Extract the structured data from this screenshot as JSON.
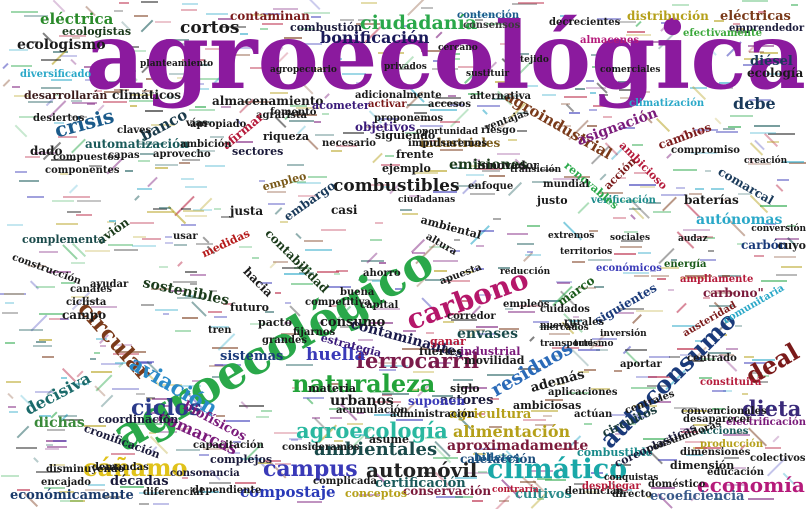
{
  "words": [
    {
      "text": "agroecológica",
      "color": "#8b1a9e"
    },
    {
      "text": "agroecológico",
      "color": "#2aa84a"
    },
    {
      "text": "naturaleza",
      "color": "#23a33a"
    },
    {
      "text": "carbono",
      "color": "#b5176a"
    },
    {
      "text": "autoconsumo",
      "color": "#1a3a7a"
    },
    {
      "text": "agroecología",
      "color": "#2ab8a0"
    },
    {
      "text": "climático",
      "color": "#1aa8a8"
    },
    {
      "text": "campus",
      "color": "#3a3ab8"
    },
    {
      "text": "cáñamo",
      "color": "#e0c21a"
    },
    {
      "text": "automóvil",
      "color": "#222222"
    },
    {
      "text": "ciudadanía",
      "color": "#2aa84a"
    },
    {
      "text": "ferrocarril",
      "color": "#7a1a4a"
    },
    {
      "text": "circular",
      "color": "#7a3a1a"
    },
    {
      "text": "aviación",
      "color": "#2a8ac8"
    },
    {
      "text": "deal",
      "color": "#7a1a1a"
    },
    {
      "text": "dieta",
      "color": "#3a2a7a"
    },
    {
      "text": "ciclos",
      "color": "#2a3a8a"
    },
    {
      "text": "ambientales",
      "color": "#1a4a4a"
    },
    {
      "text": "residuos",
      "color": "#2a6ab8"
    },
    {
      "text": "economía",
      "color": "#b51a7a"
    },
    {
      "text": "combustibles",
      "color": "#1a1a1a"
    },
    {
      "text": "crisis",
      "color": "#1a5a8a"
    },
    {
      "text": "bonificación",
      "color": "#1a1a5a"
    },
    {
      "text": "huella",
      "color": "#3a3ab8"
    },
    {
      "text": "cortos",
      "color": "#1a1a1a"
    },
    {
      "text": "eléctrica",
      "color": "#2a8a2a"
    },
    {
      "text": "compostaje",
      "color": "#2a3ab8"
    },
    {
      "text": "comarcas",
      "color": "#7a1a7a"
    },
    {
      "text": "alimentación",
      "color": "#b5a01a"
    },
    {
      "text": "aproximadamente",
      "color": "#7a1a3a"
    },
    {
      "text": "agroindustrial",
      "color": "#7a3a1a"
    },
    {
      "text": "envases",
      "color": "#1a4a4a"
    },
    {
      "text": "banco",
      "color": "#1a3a4a"
    },
    {
      "text": "decisiva",
      "color": "#1a6a6a"
    },
    {
      "text": "emisiones",
      "color": "#1a3a1a"
    },
    {
      "text": "sostenibles",
      "color": "#1a3a1a"
    },
    {
      "text": "contaminantes",
      "color": "#1a1a4a"
    },
    {
      "text": "ecologismo",
      "color": "#1a1a1a"
    },
    {
      "text": "debe",
      "color": "#1a3a5a"
    },
    {
      "text": "autónomas",
      "color": "#2aa8c8"
    },
    {
      "text": "consumo",
      "color": "#1a1a1a"
    },
    {
      "text": "agricultura",
      "color": "#b5a01a"
    },
    {
      "text": "calefacción",
      "color": "#1a4a7a"
    },
    {
      "text": "cultivos",
      "color": "#2a8a8a"
    },
    {
      "text": "económicamente",
      "color": "#1a3a6a"
    },
    {
      "text": "ecoeficiencia",
      "color": "#3a5a8a"
    },
    {
      "text": "conservación",
      "color": "#7a1a3a"
    },
    {
      "text": "certificación",
      "color": "#1a5a5a"
    },
    {
      "text": "urbanos",
      "color": "#1a1a1a"
    },
    {
      "text": "actores",
      "color": "#1a1a3a"
    },
    {
      "text": "además",
      "color": "#1a1a1a"
    },
    {
      "text": "dichas",
      "color": "#3a8a3a"
    },
    {
      "text": "biofísicos",
      "color": "#7a1a7a"
    },
    {
      "text": "asignación",
      "color": "#7a1a7a"
    },
    {
      "text": "sistemas",
      "color": "#1a3a7a"
    },
    {
      "text": "décadas",
      "color": "#1a1a3a"
    },
    {
      "text": "objetivos",
      "color": "#3a1a7a"
    },
    {
      "text": "industriales",
      "color": "#7a5a1a"
    },
    {
      "text": "contaminan",
      "color": "#7a1a1a"
    },
    {
      "text": "distribución",
      "color": "#b5a01a"
    },
    {
      "text": "eléctricas",
      "color": "#7a3a1a"
    },
    {
      "text": "diésel",
      "color": "#1a3a5a"
    },
    {
      "text": "ecología",
      "color": "#1a1a1a"
    },
    {
      "text": "almacenamiento",
      "color": "#1a1a1a"
    },
    {
      "text": "climáticos",
      "color": "#1a1a1a"
    },
    {
      "text": "automatización",
      "color": "#1a5a5a"
    },
    {
      "text": "sectores",
      "color": "#1a1a3a"
    },
    {
      "text": "contabilidad",
      "color": "#1a3a1a"
    },
    {
      "text": "embargo",
      "color": "#1a3a5a"
    },
    {
      "text": "marco",
      "color": "#1a5a1a"
    },
    {
      "text": "siguientes",
      "color": "#1a3a7a"
    },
    {
      "text": "carbono\"",
      "color": "#7a1a3a"
    },
    {
      "text": "campo",
      "color": "#1a1a1a"
    },
    {
      "text": "justa",
      "color": "#1a1a1a"
    },
    {
      "text": "avión",
      "color": "#1a3a1a"
    },
    {
      "text": "baterías",
      "color": "#1a1a1a"
    },
    {
      "text": "carbón",
      "color": "#1a3a7a"
    },
    {
      "text": "cambios",
      "color": "#7a1a1a"
    },
    {
      "text": "comarcal",
      "color": "#1a3a5a"
    },
    {
      "text": "ambiciosas",
      "color": "#1a1a1a"
    },
    {
      "text": "suponen",
      "color": "#3a3ab8"
    },
    {
      "text": "siglo",
      "color": "#1a1a1a"
    },
    {
      "text": "movilidad",
      "color": "#1a1a1a"
    },
    {
      "text": "materia",
      "color": "#1a1a1a"
    },
    {
      "text": "circuitos",
      "color": "#1a3a3a"
    },
    {
      "text": "billetes",
      "color": "#1a5a8a"
    },
    {
      "text": "combustible",
      "color": "#1a8a8a"
    },
    {
      "text": "asume",
      "color": "#1a1a1a"
    },
    {
      "text": "complementa",
      "color": "#1a4a4a"
    },
    {
      "text": "fuertes",
      "color": "#1a1a1a"
    },
    {
      "text": "industrial",
      "color": "#7a1a7a"
    },
    {
      "text": "ganar",
      "color": "#b51a3a"
    },
    {
      "text": "frente",
      "color": "#1a1a1a"
    },
    {
      "text": "innovador",
      "color": "#1a1a1a"
    },
    {
      "text": "pacto",
      "color": "#1a1a1a"
    },
    {
      "text": "medidas",
      "color": "#b51a1a"
    },
    {
      "text": "dimensión",
      "color": "#1a1a1a"
    },
    {
      "text": "coreoplasticas",
      "color": "#1a1a3a"
    },
    {
      "text": "empleo",
      "color": "#7a5a1a"
    },
    {
      "text": "verificación",
      "color": "#1a8a8a"
    },
    {
      "text": "electrificación",
      "color": "#7a1a7a"
    },
    {
      "text": "acciones",
      "color": "#1a5a5a"
    },
    {
      "text": "producción",
      "color": "#b5a01a"
    },
    {
      "text": "emprendedor",
      "color": "#1a1a3a"
    },
    {
      "text": "efectivamente",
      "color": "#3aa83a"
    },
    {
      "text": "almacenes",
      "color": "#b51a7a"
    },
    {
      "text": "contención",
      "color": "#1a5a8a"
    },
    {
      "text": "consensos",
      "color": "#3a3a3a"
    },
    {
      "text": "decrecientes",
      "color": "#1a1a1a"
    },
    {
      "text": "ecologistas",
      "color": "#1a3a1a"
    },
    {
      "text": "combustión",
      "color": "#1a1a3a"
    },
    {
      "text": "acometer",
      "color": "#3a1a7a"
    },
    {
      "text": "activar",
      "color": "#7a1a1a"
    },
    {
      "text": "aprovecho",
      "color": "#1a1a1a"
    },
    {
      "text": "riesgo",
      "color": "#1a1a1a"
    },
    {
      "text": "cercano",
      "color": "#1a1a1a"
    },
    {
      "text": "aportar",
      "color": "#1a1a1a"
    },
    {
      "text": "conquistas",
      "color": "#1a1a1a"
    },
    {
      "text": "austeridad",
      "color": "#7a1a1a"
    },
    {
      "text": "energía",
      "color": "#1a5a1a"
    },
    {
      "text": "económicos",
      "color": "#3a3ab8"
    },
    {
      "text": "desarrollarán",
      "color": "#3a1a1a"
    },
    {
      "text": "diversificado",
      "color": "#2aa8c8"
    },
    {
      "text": "desiertos",
      "color": "#1a1a1a"
    },
    {
      "text": "compuestos",
      "color": "#1a1a1a"
    },
    {
      "text": "componentes",
      "color": "#1a1a1a"
    },
    {
      "text": "agrarista",
      "color": "#1a1a1a"
    },
    {
      "text": "necesario",
      "color": "#1a1a1a"
    },
    {
      "text": "impulsaremos",
      "color": "#1a1a1a"
    },
    {
      "text": "proponemos",
      "color": "#1a1a1a"
    },
    {
      "text": "oportunidad",
      "color": "#1a1a1a"
    },
    {
      "text": "climatización",
      "color": "#2aa8c8"
    },
    {
      "text": "compromiso",
      "color": "#1a1a1a"
    },
    {
      "text": "creación",
      "color": "#1a1a1a"
    },
    {
      "text": "renovables",
      "color": "#2aa84a"
    },
    {
      "text": "ambicioso",
      "color": "#b51a3a"
    },
    {
      "text": "acción",
      "color": "#7a1a1a"
    },
    {
      "text": "audaz",
      "color": "#1a1a1a"
    },
    {
      "text": "cuyo",
      "color": "#1a1a1a"
    },
    {
      "text": "conversión",
      "color": "#1a1a1a"
    },
    {
      "text": "ampliamente",
      "color": "#b51a3a"
    },
    {
      "text": "comunitaria",
      "color": "#2aa8c8"
    },
    {
      "text": "centrado",
      "color": "#1a1a1a"
    },
    {
      "text": "constituirá",
      "color": "#b51a3a"
    },
    {
      "text": "desaparecer",
      "color": "#1a1a1a"
    },
    {
      "text": "convencionales",
      "color": "#1a1a1a"
    },
    {
      "text": "dependiente",
      "color": "#1a1a1a"
    },
    {
      "text": "diferencial",
      "color": "#1a1a1a"
    },
    {
      "text": "demandas",
      "color": "#1a1a1a"
    },
    {
      "text": "encajado",
      "color": "#1a1a1a"
    },
    {
      "text": "disminuyendo",
      "color": "#1a1a1a"
    },
    {
      "text": "cronificación",
      "color": "#1a1a3a"
    },
    {
      "text": "coordinación",
      "color": "#1a1a3a"
    },
    {
      "text": "consonancia",
      "color": "#1a1a3a"
    },
    {
      "text": "complejos",
      "color": "#1a1a3a"
    },
    {
      "text": "capacitación",
      "color": "#1a1a1a"
    },
    {
      "text": "consideramos",
      "color": "#1a1a1a"
    },
    {
      "text": "administración",
      "color": "#1a1a1a"
    },
    {
      "text": "acumulación",
      "color": "#1a1a1a"
    },
    {
      "text": "fijarnos",
      "color": "#1a1a1a"
    },
    {
      "text": "grandes",
      "color": "#1a1a1a"
    },
    {
      "text": "estrategia",
      "color": "#3a1a7a"
    },
    {
      "text": "corredor",
      "color": "#1a1a1a"
    },
    {
      "text": "empleos",
      "color": "#1a1a1a"
    },
    {
      "text": "ciclista",
      "color": "#1a1a1a"
    },
    {
      "text": "canales",
      "color": "#1a1a1a"
    },
    {
      "text": "ayudar",
      "color": "#1a1a1a"
    },
    {
      "text": "construcción",
      "color": "#1a1a1a"
    },
    {
      "text": "denuncian",
      "color": "#1a1a1a"
    },
    {
      "text": "contraría",
      "color": "#b51a3a"
    },
    {
      "text": "conceptos",
      "color": "#b5a01a"
    },
    {
      "text": "complicada",
      "color": "#1a1a1a"
    },
    {
      "text": "despliegar",
      "color": "#b51a3a"
    },
    {
      "text": "directo",
      "color": "#1a1a1a"
    },
    {
      "text": "doméstico",
      "color": "#1a1a1a"
    },
    {
      "text": "educación",
      "color": "#1a1a1a"
    },
    {
      "text": "dimensiones",
      "color": "#1a1a1a"
    },
    {
      "text": "colectivos",
      "color": "#1a1a1a"
    },
    {
      "text": "consumidoras",
      "color": "#1a1a1a"
    },
    {
      "text": "centrales",
      "color": "#1a1a1a"
    },
    {
      "text": "actúan",
      "color": "#1a1a1a"
    },
    {
      "text": "aplicaciones",
      "color": "#1a1a1a"
    },
    {
      "text": "tren",
      "color": "#1a1a1a"
    },
    {
      "text": "futuro",
      "color": "#1a1a1a"
    },
    {
      "text": "hacia",
      "color": "#1a1a1a"
    },
    {
      "text": "casi",
      "color": "#1a1a1a"
    },
    {
      "text": "usar",
      "color": "#1a1a1a"
    },
    {
      "text": "ahorro",
      "color": "#1a1a1a"
    },
    {
      "text": "altura",
      "color": "#1a1a1a"
    },
    {
      "text": "apuesta",
      "color": "#1a1a1a"
    },
    {
      "text": "ambiental",
      "color": "#1a1a1a"
    },
    {
      "text": "mundial",
      "color": "#1a1a1a"
    },
    {
      "text": "justo",
      "color": "#1a1a1a"
    },
    {
      "text": "siguiendo",
      "color": "#1a1a1a"
    },
    {
      "text": "fomento",
      "color": "#1a1a1a"
    },
    {
      "text": "riqueza",
      "color": "#1a1a1a"
    },
    {
      "text": "afirmar",
      "color": "#b51a3a"
    },
    {
      "text": "vías",
      "color": "#1a1a1a"
    },
    {
      "text": "capas",
      "color": "#1a1a1a"
    },
    {
      "text": "dado",
      "color": "#1a1a1a"
    },
    {
      "text": "apropiado",
      "color": "#1a1a1a"
    },
    {
      "text": "claves",
      "color": "#1a1a1a"
    },
    {
      "text": "ambición",
      "color": "#1a1a1a"
    },
    {
      "text": "planteamiento",
      "color": "#1a1a1a"
    },
    {
      "text": "agropecuario",
      "color": "#1a1a1a"
    },
    {
      "text": "accesos",
      "color": "#1a1a1a"
    },
    {
      "text": "sustituir",
      "color": "#1a1a1a"
    },
    {
      "text": "ventajas",
      "color": "#1a1a1a"
    },
    {
      "text": "enfoque",
      "color": "#1a1a1a"
    },
    {
      "text": "transición",
      "color": "#1a1a1a"
    },
    {
      "text": "alternativa",
      "color": "#1a1a1a"
    },
    {
      "text": "extremos",
      "color": "#1a1a1a"
    },
    {
      "text": "ciudadanas",
      "color": "#1a1a1a"
    },
    {
      "text": "comerciales",
      "color": "#1a1a1a"
    },
    {
      "text": "tejido",
      "color": "#1a1a1a"
    },
    {
      "text": "privados",
      "color": "#1a1a1a"
    },
    {
      "text": "transporte",
      "color": "#1a1a1a"
    },
    {
      "text": "mercados",
      "color": "#1a1a1a"
    },
    {
      "text": "reducción",
      "color": "#1a1a1a"
    },
    {
      "text": "territorios",
      "color": "#1a1a1a"
    },
    {
      "text": "sociales",
      "color": "#1a1a1a"
    },
    {
      "text": "capital",
      "color": "#1a1a1a"
    },
    {
      "text": "ejemplo",
      "color": "#1a1a1a"
    },
    {
      "text": "adicionalmente",
      "color": "#1a1a1a"
    },
    {
      "text": "competitiva",
      "color": "#1a1a1a"
    },
    {
      "text": "buena",
      "color": "#1a1a1a"
    },
    {
      "text": "cuidados",
      "color": "#1a1a1a"
    },
    {
      "text": "rurales",
      "color": "#1a1a1a"
    },
    {
      "text": "inversión",
      "color": "#1a1a1a"
    },
    {
      "text": "nuevas",
      "color": "#1a1a1a"
    },
    {
      "text": "turismo",
      "color": "#1a1a1a"
    }
  ]
}
